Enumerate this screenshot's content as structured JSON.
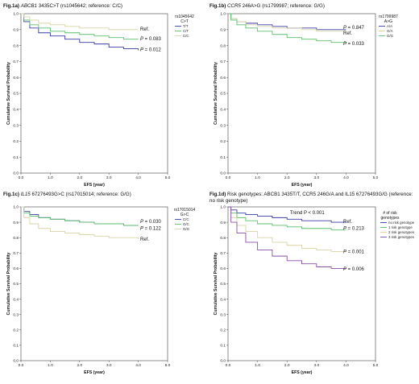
{
  "panels": [
    {
      "id": "a",
      "title_label": "Fig.1a)",
      "title_gene": "ABCB1",
      "title_rest": " 3435C>T (rs1045642; reference: C/C)",
      "chart_data": {
        "type": "line",
        "xlabel": "EFS (year)",
        "ylabel": "Cumulative Survival Probability",
        "xlim": [
          0,
          5
        ],
        "ylim": [
          0,
          1
        ],
        "xticks": [
          "0.0",
          "1.0",
          "2.0",
          "3.0",
          "4.0",
          "5.0"
        ],
        "yticks": [
          "0.0",
          "0.1",
          "0.2",
          "0.3",
          "0.4",
          "0.5",
          "0.6",
          "0.7",
          "0.8",
          "0.9",
          "1.0"
        ],
        "legend_title": "rs1045642",
        "legend_subtitle": "C>T",
        "legend_position": "top-right",
        "series": [
          {
            "name": "T/T",
            "color": "#3a3aa8",
            "x": [
              0,
              0.1,
              0.3,
              0.6,
              1.0,
              1.5,
              2.0,
              2.5,
              3.0,
              3.5,
              4.0
            ],
            "y": [
              1.0,
              0.95,
              0.91,
              0.88,
              0.86,
              0.84,
              0.82,
              0.81,
              0.79,
              0.78,
              0.77
            ]
          },
          {
            "name": "C/T",
            "color": "#5cbf6a",
            "x": [
              0,
              0.1,
              0.3,
              0.6,
              1.0,
              1.5,
              2.0,
              2.5,
              3.0,
              3.5,
              4.0
            ],
            "y": [
              1.0,
              0.96,
              0.93,
              0.91,
              0.89,
              0.88,
              0.87,
              0.86,
              0.85,
              0.84,
              0.84
            ]
          },
          {
            "name": "C/C",
            "color": "#d8d3a6",
            "x": [
              0,
              0.1,
              0.3,
              0.6,
              1.0,
              1.5,
              2.0,
              2.5,
              3.0,
              3.5,
              4.0
            ],
            "y": [
              1.0,
              0.98,
              0.96,
              0.94,
              0.93,
              0.92,
              0.91,
              0.91,
              0.9,
              0.9,
              0.9
            ]
          }
        ],
        "annotations": [
          {
            "text": "Ref.",
            "y": 0.905
          },
          {
            "text": "P = 0.083",
            "y": 0.843
          },
          {
            "text": "P = 0.012",
            "y": 0.775
          }
        ]
      }
    },
    {
      "id": "b",
      "title_label": "Fig.1b)",
      "title_gene": "CCR5",
      "title_rest": " 246A>G (rs1799987; reference: G/G)",
      "chart_data": {
        "type": "line",
        "xlabel": "EFS (year)",
        "ylabel": "Cumulative Survival Probability",
        "xlim": [
          0,
          5
        ],
        "ylim": [
          0,
          1
        ],
        "xticks": [
          "0.0",
          "1.0",
          "2.0",
          "3.0",
          "4.0",
          "5.0"
        ],
        "yticks": [
          "0.0",
          "0.1",
          "0.2",
          "0.3",
          "0.4",
          "0.5",
          "0.6",
          "0.7",
          "0.8",
          "0.9",
          "1.0"
        ],
        "legend_title": "rs1799987",
        "legend_subtitle": "A>G",
        "legend_position": "top-right",
        "series": [
          {
            "name": "A/A",
            "color": "#3a3aa8",
            "x": [
              0,
              0.1,
              0.3,
              0.6,
              1.0,
              1.5,
              2.0,
              2.5,
              3.0,
              3.5,
              4.0
            ],
            "y": [
              1.0,
              0.97,
              0.95,
              0.94,
              0.93,
              0.92,
              0.91,
              0.91,
              0.9,
              0.9,
              0.9
            ]
          },
          {
            "name": "G/A",
            "color": "#d8d3a6",
            "x": [
              0,
              0.1,
              0.3,
              0.6,
              1.0,
              1.5,
              2.0,
              2.5,
              3.0,
              3.5,
              4.0
            ],
            "y": [
              1.0,
              0.97,
              0.95,
              0.93,
              0.92,
              0.91,
              0.91,
              0.9,
              0.89,
              0.89,
              0.89
            ]
          },
          {
            "name": "G/G",
            "color": "#5cbf6a",
            "x": [
              0,
              0.1,
              0.3,
              0.6,
              1.0,
              1.5,
              2.0,
              2.5,
              3.0,
              3.5,
              4.0
            ],
            "y": [
              1.0,
              0.96,
              0.93,
              0.91,
              0.89,
              0.87,
              0.85,
              0.84,
              0.83,
              0.82,
              0.81
            ]
          }
        ],
        "annotations": [
          {
            "text": "P = 0.847",
            "y": 0.915
          },
          {
            "text": "Ref.",
            "y": 0.88
          },
          {
            "text": "P = 0.033",
            "y": 0.812
          }
        ]
      }
    },
    {
      "id": "c",
      "title_label": "Fig.1c)",
      "title_gene": "IL15",
      "title_rest": " 67276493G>C (rs17015014; reference: G/G)",
      "chart_data": {
        "type": "line",
        "xlabel": "EFS (year)",
        "ylabel": "Cumulative Survival Probability",
        "xlim": [
          0,
          5
        ],
        "ylim": [
          0,
          1
        ],
        "xticks": [
          "0.0",
          "1.0",
          "2.0",
          "3.0",
          "4.0",
          "5.0"
        ],
        "yticks": [
          "0.0",
          "0.1",
          "0.2",
          "0.3",
          "0.4",
          "0.5",
          "0.6",
          "0.7",
          "0.8",
          "0.9",
          "1.0"
        ],
        "legend_title": "rs17015014",
        "legend_subtitle": "G>C",
        "legend_position": "top-right",
        "series": [
          {
            "name": "C/C",
            "color": "#3a3aa8",
            "x": [
              0,
              0.1,
              0.3,
              0.6,
              1.0,
              1.5,
              2.0,
              2.5,
              3.0,
              3.5,
              4.0
            ],
            "y": [
              1.0,
              0.97,
              0.95,
              0.93,
              0.92,
              0.91,
              0.9,
              0.89,
              0.89,
              0.88,
              0.88
            ]
          },
          {
            "name": "G/C",
            "color": "#5cbf6a",
            "x": [
              0,
              0.1,
              0.3,
              0.6,
              1.0,
              1.5,
              2.0,
              2.5,
              3.0,
              3.5,
              4.0
            ],
            "y": [
              1.0,
              0.96,
              0.94,
              0.93,
              0.92,
              0.91,
              0.9,
              0.89,
              0.89,
              0.88,
              0.88
            ]
          },
          {
            "name": "G/G",
            "color": "#d8d3a6",
            "x": [
              0,
              0.1,
              0.3,
              0.6,
              1.0,
              1.5,
              2.0,
              2.5,
              3.0,
              3.5,
              4.0
            ],
            "y": [
              1.0,
              0.93,
              0.89,
              0.86,
              0.84,
              0.83,
              0.82,
              0.81,
              0.8,
              0.8,
              0.79
            ]
          }
        ],
        "annotations": [
          {
            "text": "P = 0.030",
            "y": 0.905
          },
          {
            "text": "P = 0.122",
            "y": 0.862
          },
          {
            "text": "Ref.",
            "y": 0.79
          }
        ]
      }
    },
    {
      "id": "d",
      "title_label": "Fig.1d)",
      "title_gene": "",
      "title_rest": " Risk genotypes: ABCB1 3435T/T, CCR5 246G/A and IL15 67276493G/G (reference: no risk genotype)",
      "chart_data": {
        "type": "line",
        "xlabel": "EFS (year)",
        "ylabel": "Cumulative Survival Probability",
        "xlim": [
          0,
          5
        ],
        "ylim": [
          0,
          1
        ],
        "xticks": [
          "0.0",
          "1.0",
          "2.0",
          "3.0",
          "4.0",
          "5.0"
        ],
        "yticks": [
          "0.0",
          "0.1",
          "0.2",
          "0.3",
          "0.4",
          "0.5",
          "0.6",
          "0.7",
          "0.8",
          "0.9",
          "1.0"
        ],
        "legend_title": "# of risk",
        "legend_subtitle": "genotypes",
        "legend_position": "top-right",
        "trend_text": "Trend P < 0.001",
        "series": [
          {
            "name": "no risk genotype",
            "color": "#3a3aa8",
            "x": [
              0,
              0.1,
              0.3,
              0.6,
              1.0,
              1.5,
              2.0,
              2.5,
              3.0,
              3.5,
              4.0
            ],
            "y": [
              1.0,
              0.98,
              0.96,
              0.95,
              0.94,
              0.93,
              0.92,
              0.91,
              0.91,
              0.9,
              0.9
            ]
          },
          {
            "name": "1 risk genotype",
            "color": "#5cbf6a",
            "x": [
              0,
              0.1,
              0.3,
              0.6,
              1.0,
              1.5,
              2.0,
              2.5,
              3.0,
              3.5,
              4.0
            ],
            "y": [
              1.0,
              0.96,
              0.93,
              0.91,
              0.89,
              0.88,
              0.87,
              0.86,
              0.86,
              0.85,
              0.85
            ]
          },
          {
            "name": "2 risk genotypes",
            "color": "#d8d3a6",
            "x": [
              0,
              0.1,
              0.3,
              0.6,
              1.0,
              1.5,
              2.0,
              2.5,
              3.0,
              3.5,
              4.0
            ],
            "y": [
              1.0,
              0.93,
              0.88,
              0.84,
              0.8,
              0.77,
              0.75,
              0.73,
              0.72,
              0.71,
              0.71
            ]
          },
          {
            "name": "3 risk genotypes",
            "color": "#8a4fa8",
            "x": [
              0,
              0.1,
              0.3,
              0.6,
              1.0,
              1.5,
              2.0,
              2.5,
              3.0,
              3.5,
              4.0
            ],
            "y": [
              1.0,
              0.9,
              0.83,
              0.77,
              0.72,
              0.68,
              0.65,
              0.63,
              0.61,
              0.6,
              0.6
            ]
          }
        ],
        "annotations": [
          {
            "text": "Ref.",
            "y": 0.905
          },
          {
            "text": "P = 0.213",
            "y": 0.86
          },
          {
            "text": "P = 0.001",
            "y": 0.71
          },
          {
            "text": "P = 0.006",
            "y": 0.598
          }
        ]
      }
    }
  ]
}
